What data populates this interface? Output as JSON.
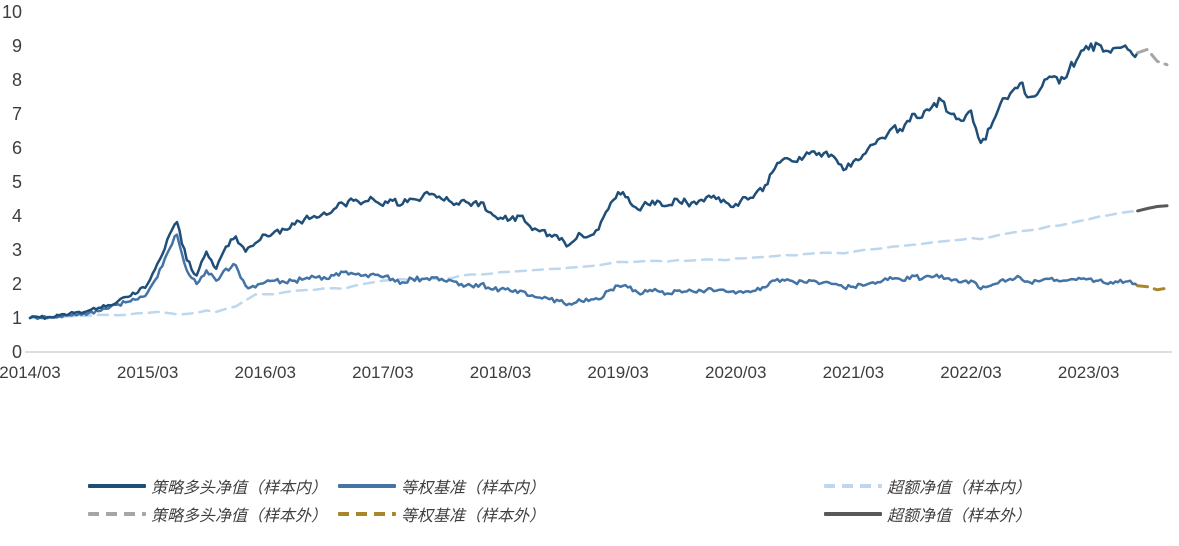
{
  "chart_data": {
    "type": "line",
    "title": "",
    "xlabel": "",
    "ylabel": "",
    "x_axis": {
      "tick_labels": [
        "2014/03",
        "2015/03",
        "2016/03",
        "2017/03",
        "2018/03",
        "2019/03",
        "2020/03",
        "2021/03",
        "2022/03",
        "2023/03"
      ],
      "months_per_tick": 12,
      "months_total": 116
    },
    "y_axis": {
      "tick_labels": [
        "0",
        "1",
        "2",
        "3",
        "4",
        "5",
        "6",
        "7",
        "8",
        "9",
        "10"
      ],
      "min": 0,
      "max": 10,
      "grid": false
    },
    "legend_position": "bottom",
    "series": [
      {
        "name": "策略多头净值（样本内）",
        "color": "#1F4E79",
        "dash": "solid",
        "start_index": 0,
        "values": [
          1.0,
          1.02,
          1.03,
          1.08,
          1.12,
          1.18,
          1.22,
          1.3,
          1.38,
          1.5,
          1.62,
          1.75,
          2.0,
          2.6,
          3.3,
          3.82,
          2.7,
          2.25,
          2.95,
          2.45,
          3.1,
          3.4,
          2.95,
          3.2,
          3.45,
          3.55,
          3.6,
          3.75,
          3.9,
          4.0,
          4.1,
          4.2,
          4.35,
          4.45,
          4.4,
          4.5,
          4.3,
          4.45,
          4.35,
          4.5,
          4.55,
          4.65,
          4.5,
          4.4,
          4.45,
          4.3,
          4.4,
          4.1,
          3.95,
          3.9,
          4.0,
          3.7,
          3.55,
          3.45,
          3.3,
          3.15,
          3.5,
          3.4,
          3.6,
          4.2,
          4.7,
          4.55,
          4.2,
          4.35,
          4.45,
          4.3,
          4.5,
          4.4,
          4.35,
          4.55,
          4.5,
          4.4,
          4.35,
          4.55,
          4.65,
          4.9,
          5.4,
          5.7,
          5.6,
          5.75,
          5.9,
          5.85,
          5.75,
          5.35,
          5.6,
          5.8,
          6.1,
          6.3,
          6.6,
          6.5,
          7.0,
          6.9,
          7.2,
          7.4,
          7.0,
          6.8,
          7.1,
          6.15,
          6.6,
          7.3,
          7.6,
          7.9,
          7.5,
          7.7,
          8.1,
          7.9,
          8.3,
          8.7,
          8.9,
          9.05,
          8.85,
          8.95,
          8.9,
          8.8
        ]
      },
      {
        "name": "等权基准（样本内）",
        "color": "#4473A5",
        "dash": "solid",
        "start_index": 0,
        "values": [
          1.0,
          1.01,
          1.02,
          1.05,
          1.08,
          1.12,
          1.15,
          1.2,
          1.28,
          1.4,
          1.48,
          1.55,
          1.75,
          2.2,
          2.9,
          3.45,
          2.4,
          2.0,
          2.4,
          2.1,
          2.45,
          2.55,
          1.95,
          1.9,
          2.05,
          2.1,
          2.05,
          2.1,
          2.15,
          2.2,
          2.2,
          2.25,
          2.35,
          2.3,
          2.25,
          2.3,
          2.2,
          2.15,
          2.05,
          2.15,
          2.15,
          2.2,
          2.15,
          2.1,
          2.0,
          1.95,
          2.0,
          1.85,
          1.85,
          1.8,
          1.8,
          1.65,
          1.6,
          1.55,
          1.5,
          1.42,
          1.55,
          1.5,
          1.55,
          1.8,
          1.95,
          1.9,
          1.75,
          1.78,
          1.8,
          1.72,
          1.8,
          1.78,
          1.75,
          1.82,
          1.8,
          1.78,
          1.72,
          1.78,
          1.8,
          1.9,
          2.1,
          2.1,
          2.05,
          2.05,
          2.1,
          2.05,
          2.0,
          1.9,
          1.92,
          1.95,
          2.05,
          2.1,
          2.15,
          2.1,
          2.25,
          2.15,
          2.2,
          2.25,
          2.1,
          2.05,
          2.1,
          1.85,
          1.95,
          2.1,
          2.15,
          2.2,
          2.05,
          2.08,
          2.15,
          2.08,
          2.12,
          2.18,
          2.15,
          2.1,
          2.0,
          2.05,
          2.08,
          1.95
        ]
      },
      {
        "name": "超额净值（样本内）",
        "color": "#BDD7EE",
        "dash": "dashed",
        "start_index": 0,
        "values": [
          1.0,
          1.01,
          1.02,
          1.03,
          1.05,
          1.06,
          1.07,
          1.09,
          1.09,
          1.08,
          1.1,
          1.14,
          1.15,
          1.18,
          1.15,
          1.11,
          1.12,
          1.15,
          1.22,
          1.18,
          1.27,
          1.34,
          1.52,
          1.69,
          1.7,
          1.7,
          1.76,
          1.8,
          1.82,
          1.83,
          1.87,
          1.88,
          1.86,
          1.94,
          2.0,
          2.05,
          2.1,
          2.12,
          2.14,
          2.12,
          2.15,
          2.16,
          2.14,
          2.17,
          2.25,
          2.28,
          2.28,
          2.3,
          2.35,
          2.36,
          2.38,
          2.4,
          2.42,
          2.44,
          2.45,
          2.48,
          2.5,
          2.52,
          2.55,
          2.6,
          2.65,
          2.64,
          2.66,
          2.68,
          2.68,
          2.66,
          2.7,
          2.68,
          2.7,
          2.72,
          2.72,
          2.7,
          2.75,
          2.76,
          2.78,
          2.8,
          2.82,
          2.85,
          2.84,
          2.88,
          2.9,
          2.92,
          2.92,
          2.9,
          2.95,
          3.0,
          3.02,
          3.05,
          3.1,
          3.12,
          3.15,
          3.18,
          3.22,
          3.25,
          3.28,
          3.3,
          3.35,
          3.32,
          3.38,
          3.45,
          3.5,
          3.55,
          3.58,
          3.62,
          3.7,
          3.72,
          3.78,
          3.85,
          3.9,
          3.98,
          4.02,
          4.08,
          4.12,
          4.15
        ]
      },
      {
        "name": "策略多头净值（样本外）",
        "color": "#A6A6A6",
        "dash": "dashed",
        "start_index": 113,
        "values": [
          8.8,
          8.9,
          8.55,
          8.45
        ]
      },
      {
        "name": "等权基准（样本外）",
        "color": "#A8862B",
        "dash": "dashed",
        "start_index": 113,
        "values": [
          1.95,
          1.92,
          1.83,
          1.88
        ]
      },
      {
        "name": "超额净值（样本外）",
        "color": "#595959",
        "dash": "solid",
        "start_index": 113,
        "values": [
          4.15,
          4.22,
          4.28,
          4.3
        ]
      }
    ]
  },
  "legend": {
    "items": [
      {
        "label": "策略多头净值（样本内）",
        "series": 0
      },
      {
        "label": "等权基准（样本内）",
        "series": 1
      },
      {
        "label": "超额净值（样本内）",
        "series": 2
      },
      {
        "label": "策略多头净值（样本外）",
        "series": 3
      },
      {
        "label": "等权基准（样本外）",
        "series": 4
      },
      {
        "label": "超额净值（样本外）",
        "series": 5
      }
    ]
  }
}
